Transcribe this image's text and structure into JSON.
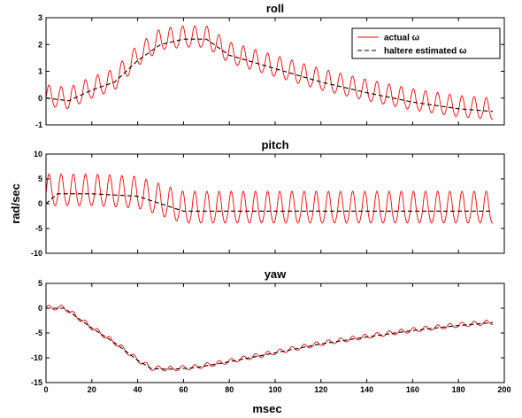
{
  "figure": {
    "xlabel": "msec",
    "ylabel": "rad/sec"
  },
  "legend": {
    "placement": "top-right",
    "entries": [
      {
        "label": "actual ω",
        "color": "#ff0000",
        "dash": "solid"
      },
      {
        "label": "haltere estimated ω",
        "color": "#000000",
        "dash": "dashed"
      }
    ]
  },
  "chart_data": [
    {
      "type": "line",
      "title": "roll",
      "xlim": [
        0,
        200
      ],
      "ylim": [
        -1,
        3
      ],
      "xticks": [
        0,
        20,
        40,
        60,
        80,
        100,
        120,
        140,
        160,
        180,
        200
      ],
      "yticks": [
        -1,
        0,
        1,
        2,
        3
      ],
      "show_xtick_labels": false,
      "series": [
        {
          "name": "actual ω",
          "color": "#ff0000",
          "approx_trend_x": [
            0,
            10,
            20,
            30,
            40,
            50,
            60,
            70,
            80,
            100,
            120,
            140,
            160,
            180,
            195
          ],
          "approx_trend_y": [
            0.0,
            -0.1,
            0.3,
            0.6,
            1.5,
            2.1,
            2.2,
            2.2,
            1.6,
            1.1,
            0.6,
            0.2,
            -0.15,
            -0.4,
            -0.5
          ],
          "oscillation_amplitude": 0.5,
          "oscillation_period_msec": 5.3
        },
        {
          "name": "haltere estimated ω",
          "color": "#000000",
          "approx_trend_x": [
            0,
            10,
            20,
            30,
            40,
            50,
            60,
            70,
            80,
            100,
            120,
            140,
            160,
            180,
            195
          ],
          "approx_trend_y": [
            0.0,
            -0.1,
            0.3,
            0.6,
            1.4,
            2.0,
            2.2,
            2.2,
            1.6,
            1.1,
            0.6,
            0.2,
            -0.15,
            -0.4,
            -0.5
          ]
        }
      ]
    },
    {
      "type": "line",
      "title": "pitch",
      "xlim": [
        0,
        200
      ],
      "ylim": [
        -10,
        10
      ],
      "xticks": [
        0,
        20,
        40,
        60,
        80,
        100,
        120,
        140,
        160,
        180,
        200
      ],
      "yticks": [
        -10,
        -5,
        0,
        5,
        10
      ],
      "show_xtick_labels": false,
      "series": [
        {
          "name": "actual ω",
          "color": "#ff0000",
          "approx_trend_x": [
            0,
            20,
            40,
            50,
            60,
            80,
            100,
            120,
            140,
            160,
            180,
            195
          ],
          "approx_trend_y": [
            2,
            2,
            1.5,
            0,
            -1.5,
            -1.5,
            -1.5,
            -1.5,
            -1.5,
            -1.5,
            -1.5,
            -1.5
          ],
          "oscillation_amplitude": 4,
          "oscillation_period_msec": 5.3
        },
        {
          "name": "haltere estimated ω",
          "color": "#000000",
          "approx_trend_x": [
            0,
            5,
            20,
            40,
            50,
            60,
            80,
            100,
            120,
            140,
            160,
            180,
            195
          ],
          "approx_trend_y": [
            0,
            2,
            2,
            1.5,
            0,
            -1.5,
            -1.5,
            -1.5,
            -1.5,
            -1.5,
            -1.5,
            -1.5,
            -1.5
          ]
        }
      ]
    },
    {
      "type": "line",
      "title": "yaw",
      "xlim": [
        0,
        200
      ],
      "ylim": [
        -15,
        5
      ],
      "xticks": [
        0,
        20,
        40,
        60,
        80,
        100,
        120,
        140,
        160,
        180,
        200
      ],
      "yticks": [
        -15,
        -10,
        -5,
        0,
        5
      ],
      "show_xtick_labels": true,
      "series": [
        {
          "name": "actual ω",
          "color": "#ff0000",
          "approx_trend_x": [
            0,
            8,
            20,
            30,
            40,
            46,
            55,
            65,
            80,
            100,
            120,
            140,
            160,
            180,
            195
          ],
          "approx_trend_y": [
            0,
            0,
            -4,
            -7,
            -10.5,
            -12.2,
            -12.3,
            -12,
            -10.8,
            -9,
            -7.2,
            -5.8,
            -4.5,
            -3.5,
            -2.9
          ],
          "oscillation_amplitude": 0.6,
          "oscillation_period_msec": 5.3
        },
        {
          "name": "haltere estimated ω",
          "color": "#000000",
          "approx_trend_x": [
            0,
            8,
            20,
            30,
            40,
            46,
            55,
            65,
            80,
            100,
            120,
            140,
            160,
            180,
            195
          ],
          "approx_trend_y": [
            0,
            0,
            -4,
            -7,
            -10.5,
            -12.2,
            -12.3,
            -12,
            -10.8,
            -9,
            -7.2,
            -5.8,
            -4.5,
            -3.5,
            -2.9
          ]
        }
      ]
    }
  ]
}
